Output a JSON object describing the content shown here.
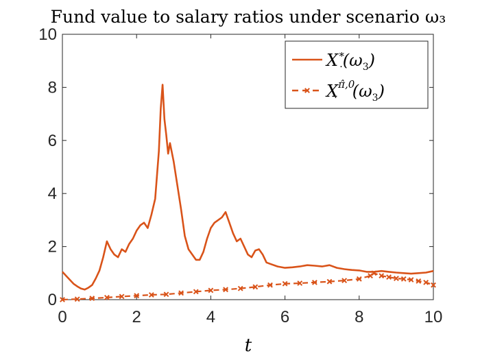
{
  "chart_data": {
    "type": "line",
    "title": "Fund value to salary ratios under scenario ω₃",
    "xlabel": "t",
    "ylabel": "",
    "xlim": [
      0,
      10
    ],
    "ylim": [
      0,
      10
    ],
    "xticks": [
      "0",
      "2",
      "4",
      "6",
      "8",
      "10"
    ],
    "yticks": [
      "0",
      "2",
      "4",
      "6",
      "8",
      "10"
    ],
    "grid": false,
    "legend_position": "top-right",
    "color": "#D95319",
    "series": [
      {
        "name": "X‧*(ω₃)",
        "style": "solid",
        "x": [
          0,
          0.1,
          0.2,
          0.3,
          0.4,
          0.5,
          0.6,
          0.7,
          0.8,
          0.9,
          1.0,
          1.1,
          1.2,
          1.3,
          1.4,
          1.5,
          1.6,
          1.7,
          1.8,
          1.9,
          2.0,
          2.1,
          2.2,
          2.3,
          2.4,
          2.5,
          2.6,
          2.65,
          2.7,
          2.75,
          2.8,
          2.85,
          2.9,
          3.0,
          3.1,
          3.2,
          3.3,
          3.4,
          3.5,
          3.6,
          3.7,
          3.8,
          3.9,
          4.0,
          4.1,
          4.2,
          4.3,
          4.4,
          4.5,
          4.6,
          4.7,
          4.8,
          4.9,
          5.0,
          5.1,
          5.2,
          5.3,
          5.4,
          5.5,
          5.6,
          5.8,
          6.0,
          6.2,
          6.4,
          6.6,
          6.8,
          7.0,
          7.2,
          7.4,
          7.6,
          7.8,
          8.0,
          8.2,
          8.4,
          8.6,
          8.8,
          9.0,
          9.2,
          9.4,
          9.6,
          9.8,
          10.0
        ],
        "y": [
          1.05,
          0.9,
          0.75,
          0.6,
          0.5,
          0.42,
          0.38,
          0.45,
          0.55,
          0.8,
          1.1,
          1.6,
          2.2,
          1.9,
          1.7,
          1.6,
          1.9,
          1.8,
          2.1,
          2.3,
          2.6,
          2.8,
          2.9,
          2.7,
          3.2,
          3.8,
          5.6,
          7.2,
          8.1,
          6.8,
          6.2,
          5.5,
          5.9,
          5.2,
          4.3,
          3.4,
          2.4,
          1.9,
          1.7,
          1.5,
          1.5,
          1.8,
          2.3,
          2.7,
          2.9,
          3.0,
          3.1,
          3.3,
          2.9,
          2.5,
          2.2,
          2.3,
          2.0,
          1.7,
          1.6,
          1.85,
          1.9,
          1.7,
          1.4,
          1.35,
          1.25,
          1.2,
          1.22,
          1.25,
          1.3,
          1.28,
          1.25,
          1.3,
          1.2,
          1.15,
          1.12,
          1.1,
          1.05,
          1.05,
          1.08,
          1.05,
          1.02,
          1.0,
          0.98,
          1.0,
          1.02,
          1.08
        ]
      },
      {
        "name": "X‧^{π̂,0}(ω₃)",
        "style": "dashed-cross",
        "x": [
          0,
          0.4,
          0.8,
          1.2,
          1.6,
          2.0,
          2.4,
          2.8,
          3.2,
          3.6,
          4.0,
          4.4,
          4.8,
          5.2,
          5.6,
          6.0,
          6.4,
          6.8,
          7.2,
          7.6,
          8.0,
          8.3,
          8.4,
          8.6,
          8.8,
          9.0,
          9.2,
          9.4,
          9.6,
          9.8,
          10.0
        ],
        "y": [
          0.0,
          0.02,
          0.05,
          0.08,
          0.12,
          0.15,
          0.18,
          0.2,
          0.25,
          0.3,
          0.35,
          0.38,
          0.42,
          0.48,
          0.55,
          0.6,
          0.62,
          0.65,
          0.68,
          0.72,
          0.78,
          0.9,
          1.0,
          0.9,
          0.85,
          0.8,
          0.78,
          0.75,
          0.7,
          0.65,
          0.55
        ]
      }
    ]
  }
}
